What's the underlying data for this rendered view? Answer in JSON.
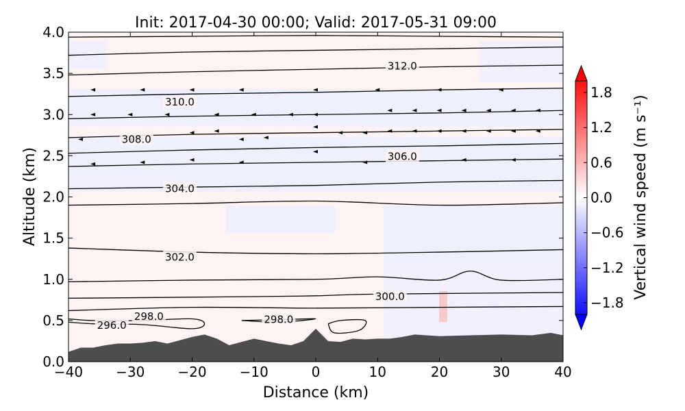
{
  "chart_data": {
    "type": "contour",
    "title": "Init: 2017-04-30 00:00; Valid: 2017-05-31 09:00",
    "xlabel": "Distance (km)",
    "ylabel": "Altitude (km)",
    "xlim": [
      -40,
      40
    ],
    "ylim": [
      0.0,
      4.0
    ],
    "xticks": [
      "−40",
      "−30",
      "−20",
      "−10",
      "0",
      "10",
      "20",
      "30",
      "40"
    ],
    "xtick_values": [
      -40,
      -30,
      -20,
      -10,
      0,
      10,
      20,
      30,
      40
    ],
    "yticks": [
      "0.0",
      "0.5",
      "1.0",
      "1.5",
      "2.0",
      "2.5",
      "3.0",
      "3.5",
      "4.0"
    ],
    "ytick_values": [
      0.0,
      0.5,
      1.0,
      1.5,
      2.0,
      2.5,
      3.0,
      3.5,
      4.0
    ],
    "colorbar": {
      "label": "Vertical wind speed (m s⁻¹)",
      "range": [
        -2.0,
        2.0
      ],
      "tick_labels": [
        "1.8",
        "1.2",
        "0.6",
        "0.0",
        "−0.6",
        "−1.2",
        "−1.8"
      ],
      "tick_values": [
        1.8,
        1.2,
        0.6,
        0.0,
        -0.6,
        -1.2,
        -1.8
      ],
      "cmap": "bwr",
      "extend": "both"
    },
    "terrain": {
      "color": "#4d4d4d",
      "x": [
        -40,
        -38,
        -36,
        -34,
        -32,
        -30,
        -28,
        -26,
        -24,
        -22,
        -20,
        -18,
        -16,
        -14,
        -12,
        -10,
        -8,
        -6,
        -4,
        -2,
        0,
        2,
        4,
        6,
        8,
        10,
        12,
        14,
        16,
        20,
        25,
        30,
        35,
        38,
        40
      ],
      "y": [
        0.12,
        0.17,
        0.17,
        0.2,
        0.22,
        0.22,
        0.23,
        0.25,
        0.22,
        0.26,
        0.3,
        0.33,
        0.28,
        0.2,
        0.24,
        0.28,
        0.25,
        0.22,
        0.2,
        0.25,
        0.4,
        0.25,
        0.24,
        0.28,
        0.27,
        0.28,
        0.28,
        0.3,
        0.33,
        0.31,
        0.32,
        0.33,
        0.32,
        0.35,
        0.32
      ]
    },
    "contour_labels": [
      {
        "text": "296.0",
        "x": -33,
        "y": 0.44
      },
      {
        "text": "298.0",
        "x": -27,
        "y": 0.55
      },
      {
        "text": "298.0",
        "x": -6,
        "y": 0.51
      },
      {
        "text": "300.0",
        "x": 12,
        "y": 0.79
      },
      {
        "text": "302.0",
        "x": -22,
        "y": 1.27
      },
      {
        "text": "304.0",
        "x": -22,
        "y": 2.1
      },
      {
        "text": "306.0",
        "x": 14,
        "y": 2.49
      },
      {
        "text": "308.0",
        "x": -29,
        "y": 2.7
      },
      {
        "text": "310.0",
        "x": -22,
        "y": 3.15
      },
      {
        "text": "312.0",
        "x": 14,
        "y": 3.59
      }
    ],
    "isentropes": [
      {
        "x": [
          -40,
          -20,
          0,
          20,
          40
        ],
        "y": [
          0.62,
          0.66,
          0.65,
          0.66,
          0.67
        ]
      },
      {
        "x": [
          -40,
          -10,
          0,
          10,
          40
        ],
        "y": [
          0.77,
          0.79,
          0.8,
          0.82,
          0.84
        ]
      },
      {
        "x": [
          -40,
          -20,
          0,
          10,
          20,
          25,
          30,
          40
        ],
        "y": [
          0.97,
          0.99,
          1.0,
          1.03,
          0.99,
          1.1,
          0.99,
          1.0
        ]
      },
      {
        "x": [
          -40,
          -20,
          0,
          20,
          40
        ],
        "y": [
          1.38,
          1.33,
          1.31,
          1.33,
          1.36
        ]
      },
      {
        "x": [
          -40,
          -20,
          0,
          20,
          40
        ],
        "y": [
          1.9,
          1.92,
          1.95,
          1.9,
          1.93
        ]
      },
      {
        "x": [
          -40,
          -20,
          0,
          20,
          40
        ],
        "y": [
          2.1,
          2.12,
          2.14,
          2.18,
          2.2
        ]
      },
      {
        "x": [
          -40,
          -20,
          0,
          20,
          40
        ],
        "y": [
          2.37,
          2.4,
          2.42,
          2.44,
          2.46
        ]
      },
      {
        "x": [
          -40,
          -20,
          0,
          20,
          40
        ],
        "y": [
          2.53,
          2.57,
          2.6,
          2.62,
          2.65
        ]
      },
      {
        "x": [
          -40,
          -20,
          0,
          20,
          40
        ],
        "y": [
          2.72,
          2.76,
          2.78,
          2.8,
          2.82
        ]
      },
      {
        "x": [
          -40,
          -20,
          0,
          20,
          40
        ],
        "y": [
          2.95,
          2.98,
          3.0,
          3.02,
          3.05
        ]
      },
      {
        "x": [
          -40,
          -20,
          0,
          20,
          40
        ],
        "y": [
          3.22,
          3.25,
          3.27,
          3.3,
          3.32
        ]
      },
      {
        "x": [
          -40,
          -20,
          0,
          20,
          40
        ],
        "y": [
          3.48,
          3.52,
          3.55,
          3.58,
          3.6
        ]
      },
      {
        "x": [
          -40,
          -20,
          0,
          20,
          40
        ],
        "y": [
          3.72,
          3.76,
          3.78,
          3.8,
          3.82
        ]
      },
      {
        "x": [
          -40,
          -20,
          0,
          20,
          40
        ],
        "y": [
          3.94,
          3.95,
          3.96,
          3.95,
          3.94
        ]
      }
    ],
    "closed_contours": [
      {
        "x": [
          -40,
          -36,
          -28,
          -20,
          -18,
          -20,
          -28,
          -36,
          -40
        ],
        "y": [
          0.52,
          0.5,
          0.5,
          0.52,
          0.46,
          0.4,
          0.45,
          0.46,
          0.48
        ]
      },
      {
        "x": [
          -12,
          -6,
          0,
          -6,
          -12
        ],
        "y": [
          0.5,
          0.51,
          0.52,
          0.48,
          0.5
        ]
      },
      {
        "x": [
          2,
          4,
          8,
          7,
          3,
          2
        ],
        "y": [
          0.46,
          0.5,
          0.5,
          0.38,
          0.35,
          0.46
        ]
      }
    ],
    "wind_arrows": [
      {
        "x": -36,
        "y": 3.3
      },
      {
        "x": -28,
        "y": 3.3
      },
      {
        "x": -20,
        "y": 3.3
      },
      {
        "x": -12,
        "y": 3.3
      },
      {
        "x": 0,
        "y": 3.3
      },
      {
        "x": 10,
        "y": 3.3
      },
      {
        "x": 20,
        "y": 3.3
      },
      {
        "x": 30,
        "y": 3.3
      },
      {
        "x": -36,
        "y": 3.0
      },
      {
        "x": -30,
        "y": 3.0
      },
      {
        "x": -24,
        "y": 3.0
      },
      {
        "x": -16,
        "y": 3.0
      },
      {
        "x": -10,
        "y": 3.0
      },
      {
        "x": -4,
        "y": 3.0
      },
      {
        "x": 0,
        "y": 3.0
      },
      {
        "x": 12,
        "y": 3.05
      },
      {
        "x": 16,
        "y": 3.05
      },
      {
        "x": 20,
        "y": 3.05
      },
      {
        "x": 24,
        "y": 3.05
      },
      {
        "x": 28,
        "y": 3.05
      },
      {
        "x": 32,
        "y": 3.05
      },
      {
        "x": 36,
        "y": 3.05
      },
      {
        "x": -38,
        "y": 2.7
      },
      {
        "x": -30,
        "y": 2.7
      },
      {
        "x": -20,
        "y": 2.78
      },
      {
        "x": -16,
        "y": 2.8
      },
      {
        "x": -12,
        "y": 2.7
      },
      {
        "x": -8,
        "y": 2.72
      },
      {
        "x": 0,
        "y": 2.85
      },
      {
        "x": 4,
        "y": 2.78
      },
      {
        "x": 8,
        "y": 2.78
      },
      {
        "x": 12,
        "y": 2.8
      },
      {
        "x": 16,
        "y": 2.8
      },
      {
        "x": 20,
        "y": 2.8
      },
      {
        "x": 24,
        "y": 2.8
      },
      {
        "x": 28,
        "y": 2.8
      },
      {
        "x": 32,
        "y": 2.8
      },
      {
        "x": 36,
        "y": 2.8
      },
      {
        "x": -36,
        "y": 2.4
      },
      {
        "x": -28,
        "y": 2.42
      },
      {
        "x": -20,
        "y": 2.45
      },
      {
        "x": -12,
        "y": 2.42
      },
      {
        "x": 0,
        "y": 2.55
      },
      {
        "x": 8,
        "y": 2.42
      },
      {
        "x": 16,
        "y": 2.45
      },
      {
        "x": 24,
        "y": 2.45
      },
      {
        "x": 32,
        "y": 2.45
      }
    ]
  }
}
